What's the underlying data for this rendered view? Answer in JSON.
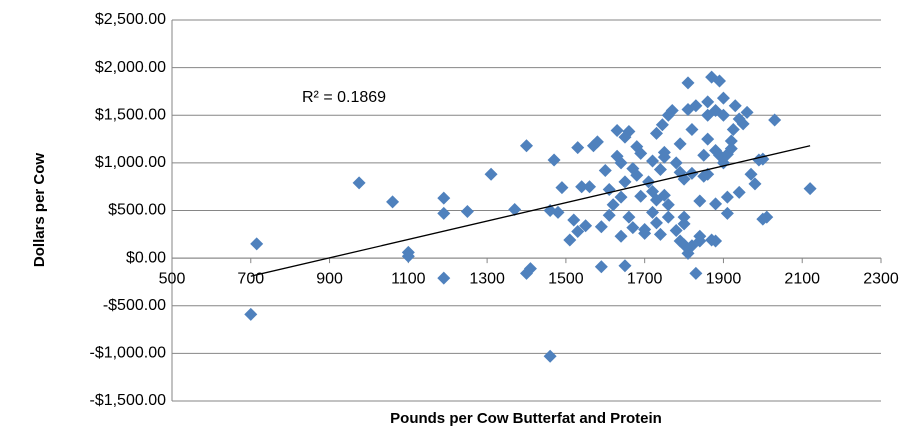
{
  "chart_data": {
    "type": "scatter",
    "x_label": "Pounds per Cow Butterfat and Protein",
    "y_label": "Dollars per Cow",
    "annotation": "R² = 0.1869",
    "color": "#4f81bd",
    "grid": true,
    "xlim": [
      500,
      2300
    ],
    "xticks": [
      500,
      700,
      900,
      1100,
      1300,
      1500,
      1700,
      1900,
      2100,
      2300
    ],
    "ylim": [
      -1500,
      2500
    ],
    "yticks": [
      {
        "value": -1500,
        "label": "-$1,500.00"
      },
      {
        "value": -1000,
        "label": "-$1,000.00"
      },
      {
        "value": -500,
        "label": "-$500.00"
      },
      {
        "value": 0,
        "label": "$0.00"
      },
      {
        "value": 500,
        "label": "$500.00"
      },
      {
        "value": 1000,
        "label": "$1,000.00"
      },
      {
        "value": 1500,
        "label": "$1,500.00"
      },
      {
        "value": 2000,
        "label": "$2,000.00"
      },
      {
        "value": 2500,
        "label": "$2,500.00"
      }
    ],
    "trendline": {
      "x": [
        700,
        2120
      ],
      "y": [
        -190,
        1180
      ]
    },
    "x": [
      700,
      715,
      975,
      1060,
      1100,
      1100,
      1190,
      1190,
      1190,
      1250,
      1310,
      1370,
      1400,
      1400,
      1410,
      1460,
      1470,
      1460,
      1480,
      1490,
      1510,
      1520,
      1530,
      1530,
      1540,
      1550,
      1560,
      1570,
      1580,
      1590,
      1590,
      1600,
      1610,
      1610,
      1620,
      1630,
      1630,
      1640,
      1640,
      1640,
      1650,
      1650,
      1650,
      1660,
      1660,
      1670,
      1670,
      1680,
      1680,
      1690,
      1690,
      1700,
      1700,
      1710,
      1720,
      1720,
      1720,
      1730,
      1730,
      1730,
      1740,
      1740,
      1745,
      1750,
      1750,
      1750,
      1760,
      1760,
      1760,
      1770,
      1780,
      1780,
      1790,
      1790,
      1790,
      1800,
      1800,
      1800,
      1800,
      1810,
      1810,
      1810,
      1820,
      1820,
      1820,
      1830,
      1830,
      1840,
      1840,
      1840,
      1850,
      1850,
      1860,
      1860,
      1860,
      1860,
      1870,
      1870,
      1880,
      1880,
      1880,
      1880,
      1890,
      1890,
      1900,
      1900,
      1900,
      1910,
      1910,
      1910,
      1920,
      1920,
      1925,
      1930,
      1940,
      1940,
      1950,
      1960,
      1970,
      1980,
      1990,
      2000,
      2000,
      2010,
      2030,
      2120
    ],
    "y": [
      -590,
      150,
      790,
      590,
      60,
      20,
      630,
      470,
      -210,
      490,
      880,
      510,
      1180,
      -160,
      -110,
      -1030,
      1030,
      500,
      480,
      740,
      190,
      400,
      1160,
      280,
      750,
      340,
      750,
      1180,
      1220,
      -90,
      330,
      920,
      720,
      450,
      560,
      1340,
      1070,
      640,
      1000,
      230,
      1270,
      800,
      -80,
      1330,
      430,
      940,
      320,
      1170,
      870,
      650,
      1100,
      260,
      300,
      800,
      1020,
      480,
      700,
      1310,
      610,
      370,
      930,
      250,
      1400,
      1110,
      1060,
      660,
      1500,
      430,
      560,
      1550,
      1000,
      290,
      180,
      1200,
      900,
      430,
      360,
      830,
      140,
      1840,
      1560,
      50,
      1350,
      890,
      130,
      1600,
      -160,
      230,
      600,
      180,
      1080,
      860,
      1640,
      1250,
      1500,
      880,
      190,
      1900,
      1550,
      1130,
      570,
      180,
      1860,
      1080,
      1680,
      1000,
      1500,
      1090,
      640,
      470,
      1230,
      1150,
      1350,
      1600,
      1460,
      690,
      1410,
      1530,
      880,
      780,
      1030,
      1040,
      410,
      430,
      1450,
      730
    ]
  }
}
